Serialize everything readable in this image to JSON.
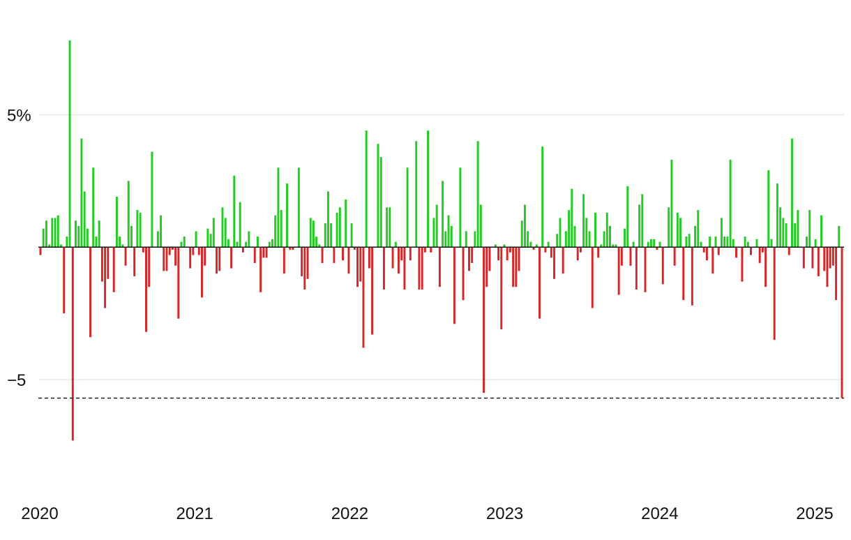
{
  "chart_data": {
    "type": "bar",
    "title": "",
    "xlabel": "",
    "ylabel": "",
    "ylim": [
      -8,
      7.8
    ],
    "y_ticks": [
      {
        "value": 5,
        "label": "5%"
      },
      {
        "value": -5,
        "label": "−5"
      }
    ],
    "x_ticks": [
      {
        "value": 2020,
        "label": "2020"
      },
      {
        "value": 2021,
        "label": "2021"
      },
      {
        "value": 2022,
        "label": "2022"
      },
      {
        "value": 2023,
        "label": "2023"
      },
      {
        "value": 2024,
        "label": "2024"
      },
      {
        "value": 2025,
        "label": "2025"
      }
    ],
    "x_range": [
      2020,
      2025.2
    ],
    "reference_line": -5.7,
    "grid": true,
    "colors": {
      "positive": "#22cc22",
      "negative": "#d62728"
    },
    "values": [
      -0.3,
      0.7,
      1.0,
      0.1,
      1.1,
      1.1,
      1.2,
      0.1,
      -2.5,
      0.4,
      7.8,
      -7.3,
      1.0,
      0.8,
      4.1,
      2.1,
      0.7,
      -3.4,
      3.0,
      0.4,
      1.0,
      -1.3,
      -2.3,
      -1.2,
      0.0,
      -1.7,
      1.9,
      0.4,
      0.1,
      -0.7,
      2.5,
      0.8,
      -1.1,
      1.4,
      1.3,
      -0.2,
      -3.2,
      -1.5,
      3.6,
      0.0,
      0.6,
      1.2,
      -0.9,
      -0.9,
      -0.3,
      -0.1,
      -0.7,
      -2.7,
      0.2,
      0.4,
      0.0,
      -0.8,
      -0.3,
      0.6,
      -0.3,
      -1.9,
      -0.7,
      0.7,
      0.5,
      1.1,
      -1.0,
      -0.9,
      1.5,
      1.1,
      0.3,
      -0.8,
      2.7,
      0.2,
      1.7,
      -0.2,
      0.2,
      0.6,
      0.0,
      -0.6,
      0.4,
      -1.7,
      -0.4,
      -0.4,
      0.2,
      0.3,
      1.2,
      3.0,
      1.4,
      -1.0,
      2.4,
      -0.1,
      -0.1,
      0.0,
      3.0,
      -1.1,
      -1.6,
      -1.2,
      1.1,
      1.0,
      0.4,
      0.1,
      -0.6,
      0.9,
      2.1,
      0.9,
      -0.6,
      1.3,
      1.5,
      -0.5,
      1.8,
      -1.0,
      0.9,
      -0.1,
      -1.5,
      -1.3,
      -3.8,
      4.4,
      -0.8,
      -3.3,
      0.0,
      3.9,
      3.4,
      -1.6,
      1.5,
      1.5,
      -0.8,
      0.2,
      -1.0,
      -0.5,
      -1.6,
      3.0,
      -0.5,
      0.0,
      4.0,
      -1.6,
      -1.6,
      -0.2,
      4.4,
      -0.2,
      1.1,
      1.6,
      -1.5,
      2.5,
      0.6,
      1.2,
      0.8,
      -2.9,
      0.0,
      3.0,
      -2.0,
      0.6,
      -0.9,
      -0.6,
      0.6,
      4.0,
      1.6,
      -5.5,
      -1.5,
      -0.9,
      0.0,
      0.1,
      -0.5,
      -3.1,
      0.1,
      -0.5,
      -0.2,
      -1.5,
      -1.5,
      -0.9,
      1.0,
      1.6,
      0.6,
      0.2,
      -0.1,
      0.1,
      -2.7,
      3.8,
      -0.2,
      0.2,
      -0.4,
      -1.2,
      0.5,
      1.1,
      -1.0,
      0.6,
      1.4,
      2.2,
      0.8,
      -0.5,
      -0.2,
      2.0,
      1.1,
      0.6,
      -2.3,
      1.3,
      -0.4,
      0.1,
      0.6,
      1.3,
      0.8,
      0.1,
      0.1,
      -1.8,
      -0.7,
      0.7,
      2.3,
      -0.7,
      0.2,
      -1.6,
      1.6,
      2.0,
      -1.7,
      0.2,
      0.3,
      0.3,
      -0.1,
      0.2,
      -1.4,
      0.0,
      1.5,
      3.3,
      -0.7,
      1.3,
      1.1,
      -2.0,
      0.4,
      0.5,
      -2.2,
      0.8,
      1.4,
      0.2,
      -0.2,
      -0.5,
      0.4,
      -1.0,
      0.4,
      -0.3,
      1.1,
      0.4,
      0.4,
      3.3,
      0.3,
      -0.4,
      0.0,
      -1.3,
      0.4,
      0.2,
      -0.3,
      0.0,
      0.3,
      -0.6,
      -0.2,
      -1.5,
      2.9,
      0.3,
      -3.5,
      2.4,
      1.5,
      1.1,
      0.9,
      -0.3,
      4.1,
      0.9,
      1.4,
      0.0,
      -0.8,
      0.4,
      1.4,
      -0.8,
      0.3,
      -1.1,
      1.2,
      -0.9,
      -1.5,
      -0.8,
      -0.7,
      -2.0,
      0.8,
      -5.7
    ]
  }
}
